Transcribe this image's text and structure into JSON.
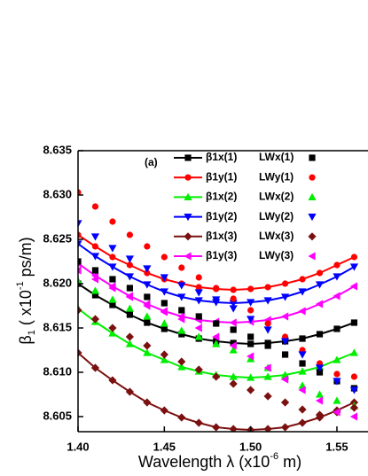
{
  "chart_data": {
    "type": "line",
    "annotation": "(a)",
    "x_label_parts": [
      "Wavelength λ (x10",
      "-6",
      " m)"
    ],
    "y_label_parts": [
      "β",
      "1",
      " ( x10",
      "-1",
      " ps/m)"
    ],
    "x": [
      1.4,
      1.41,
      1.42,
      1.43,
      1.44,
      1.45,
      1.46,
      1.47,
      1.48,
      1.49,
      1.5,
      1.51,
      1.52,
      1.53,
      1.54,
      1.55,
      1.56
    ],
    "xlim": [
      1.4,
      1.568
    ],
    "xticks": [
      {
        "value": 1.4,
        "label": "1.40"
      },
      1.45,
      {
        "value": 1.5,
        "label": "1.50"
      },
      1.55
    ],
    "ylim": [
      8.6033,
      8.635
    ],
    "yticks": [
      8.605,
      {
        "value": 8.61,
        "label": "8.610"
      },
      8.615,
      {
        "value": 8.62,
        "label": "8.620"
      },
      8.625,
      {
        "value": 8.63,
        "label": "8.630"
      },
      8.635
    ],
    "series": [
      {
        "name": "β1x(1)",
        "color": "#000000",
        "mode": "lines+markers",
        "marker": "square",
        "values": [
          8.62,
          8.6187,
          8.6176,
          8.6165,
          8.6156,
          8.6149,
          8.6143,
          8.6138,
          8.6135,
          8.6133,
          8.6132,
          8.6133,
          8.6135,
          8.6138,
          8.6143,
          8.6149,
          8.6156
        ]
      },
      {
        "name": "β1y(1)",
        "color": "#ff0000",
        "mode": "lines+markers",
        "marker": "circle",
        "values": [
          8.6255,
          8.6242,
          8.623,
          8.6221,
          8.6212,
          8.6205,
          8.62,
          8.6196,
          8.6194,
          8.6193,
          8.6194,
          8.6196,
          8.62,
          8.6205,
          8.6212,
          8.6221,
          8.623
        ]
      },
      {
        "name": "β1x(2)",
        "color": "#00ee00",
        "mode": "lines+markers",
        "marker": "triangle-up",
        "values": [
          8.6172,
          8.6157,
          8.6144,
          8.6132,
          8.6122,
          8.6114,
          8.6106,
          8.6101,
          8.6097,
          8.6095,
          8.6094,
          8.6095,
          8.6097,
          8.6101,
          8.6106,
          8.6114,
          8.6122
        ]
      },
      {
        "name": "β1y(2)",
        "color": "#0000ff",
        "mode": "lines+markers",
        "marker": "triangle-down",
        "values": [
          8.6245,
          8.6231,
          8.6219,
          8.6208,
          8.6199,
          8.6191,
          8.6185,
          8.6181,
          8.6179,
          8.6178,
          8.6179,
          8.6181,
          8.6185,
          8.6191,
          8.6199,
          8.6208,
          8.6219
        ]
      },
      {
        "name": "β1x(3)",
        "color": "#7b1010",
        "mode": "lines+markers",
        "marker": "diamond",
        "values": [
          8.6122,
          8.6105,
          8.6091,
          8.6078,
          8.6066,
          8.6057,
          8.6049,
          8.6043,
          8.6038,
          8.6036,
          8.6035,
          8.6036,
          8.6038,
          8.6043,
          8.6049,
          8.6057,
          8.6066
        ]
      },
      {
        "name": "β1y(3)",
        "color": "#ff00ff",
        "mode": "lines+markers",
        "marker": "triangle-left",
        "values": [
          8.6223,
          8.6209,
          8.6197,
          8.6186,
          8.6177,
          8.6169,
          8.6163,
          8.6159,
          8.6157,
          8.6156,
          8.6157,
          8.6159,
          8.6163,
          8.6169,
          8.6177,
          8.6186,
          8.6197
        ]
      },
      {
        "name": "LWx(1)",
        "color": "#000000",
        "mode": "markers",
        "marker": "square",
        "values": [
          8.6225,
          8.6215,
          8.6205,
          8.6195,
          8.6185,
          8.6178,
          8.617,
          8.6163,
          8.6155,
          8.6148,
          8.614,
          8.613,
          8.612,
          8.611,
          8.61,
          8.609,
          8.6082
        ]
      },
      {
        "name": "LWy(1)",
        "color": "#ff0000",
        "mode": "markers",
        "marker": "circle",
        "values": [
          8.6303,
          8.6287,
          8.627,
          8.6255,
          8.6242,
          8.623,
          8.6218,
          8.6207,
          8.6195,
          8.6183,
          8.617,
          8.6155,
          8.614,
          8.6125,
          8.611,
          8.6098,
          8.6095
        ]
      },
      {
        "name": "LWx(2)",
        "color": "#00ee00",
        "mode": "markers",
        "marker": "triangle-up",
        "values": [
          8.6203,
          8.6192,
          8.6182,
          8.6172,
          8.6163,
          8.6155,
          8.6147,
          8.614,
          8.6132,
          8.6125,
          8.6115,
          8.6105,
          8.6095,
          8.6085,
          8.6075,
          8.6068,
          8.6062
        ]
      },
      {
        "name": "LWy(2)",
        "color": "#0000ff",
        "mode": "markers",
        "marker": "triangle-down",
        "values": [
          8.6268,
          8.6253,
          8.624,
          8.6228,
          8.6217,
          8.6207,
          8.6198,
          8.619,
          8.6182,
          8.6172,
          8.616,
          8.6148,
          8.6135,
          8.612,
          8.6105,
          8.609,
          8.608
        ]
      },
      {
        "name": "LWx(3)",
        "color": "#7b1010",
        "mode": "markers",
        "marker": "diamond",
        "values": [
          8.617,
          8.616,
          8.615,
          8.614,
          8.613,
          8.612,
          8.6112,
          8.6103,
          8.6095,
          8.6087,
          8.608,
          8.6073,
          8.6066,
          8.6058,
          8.6052,
          8.6055,
          8.606
        ]
      },
      {
        "name": "LWy(3)",
        "color": "#ff00ff",
        "mode": "markers",
        "marker": "triangle-left",
        "values": [
          8.6215,
          8.6205,
          8.6195,
          8.6185,
          8.6175,
          8.6168,
          8.616,
          8.615,
          8.614,
          8.613,
          8.6118,
          8.6105,
          8.6092,
          8.608,
          8.6068,
          8.6055,
          8.605
        ]
      }
    ]
  }
}
